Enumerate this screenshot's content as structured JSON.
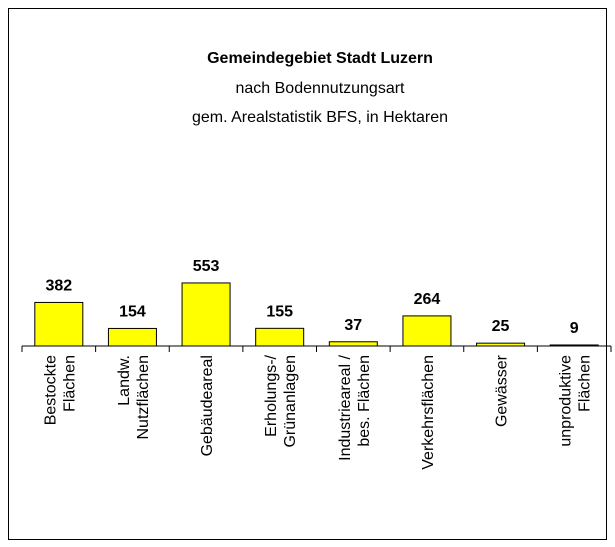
{
  "chart_data": {
    "type": "bar",
    "title": "Gemeindegebiet Stadt Luzern",
    "subtitle": [
      "nach Bodennutzungsart",
      "gem. Arealstatistik BFS, in Hektaren"
    ],
    "categories": [
      "Bestockte\nFlächen",
      "Landw.\nNutzflächen",
      "Gebäudeareal",
      "Erholungs-/\nGrünanlagen",
      "Industrieareal /\nbes. Flächen",
      "Verkehrsflächen",
      "Gewässer",
      "unproduktive\nFlächen"
    ],
    "values": [
      382,
      154,
      553,
      155,
      37,
      264,
      25,
      9
    ],
    "color": "#ffff00"
  }
}
